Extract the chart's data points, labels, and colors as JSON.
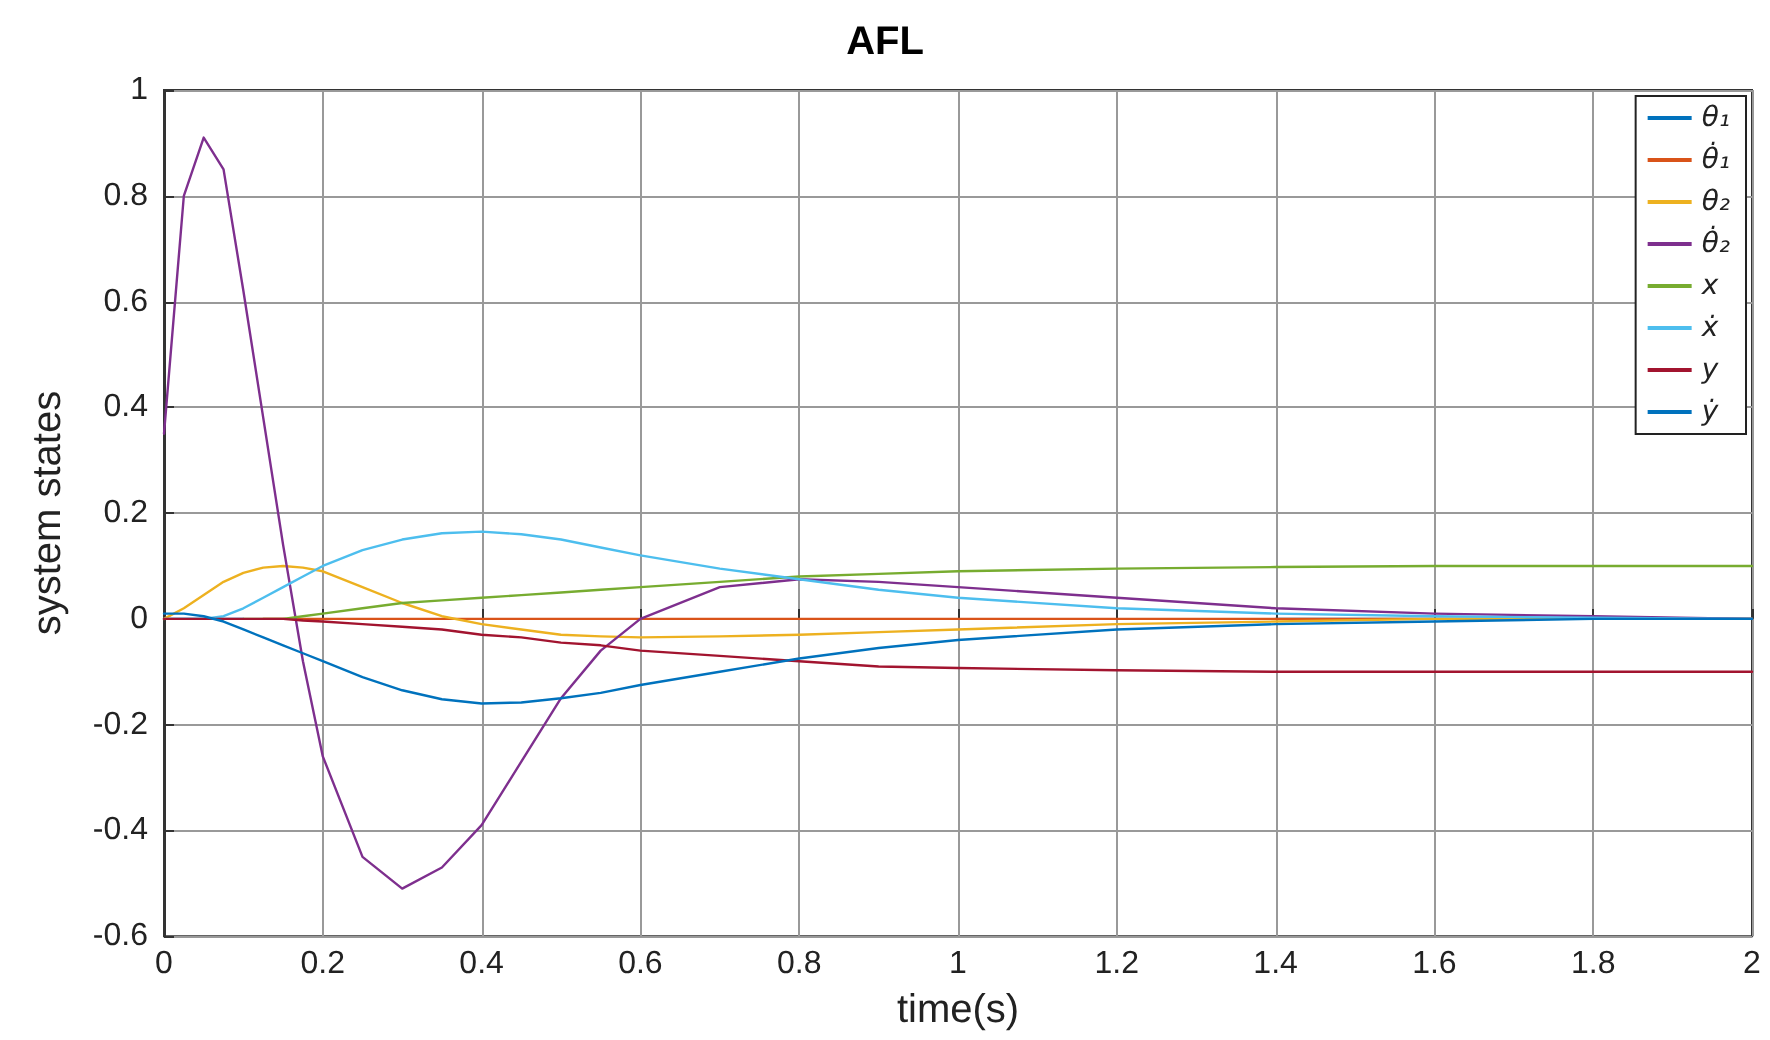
{
  "chart_data": {
    "type": "line",
    "title": "AFL",
    "xlabel": "time(s)",
    "ylabel": "system states",
    "x": [
      0,
      0.025,
      0.05,
      0.075,
      0.1,
      0.125,
      0.15,
      0.175,
      0.2,
      0.25,
      0.3,
      0.35,
      0.4,
      0.45,
      0.5,
      0.55,
      0.6,
      0.7,
      0.8,
      0.9,
      1.0,
      1.2,
      1.4,
      1.6,
      1.8,
      2.0
    ],
    "series": [
      {
        "name": "θ₁",
        "color": "#0072bd",
        "values": [
          0,
          0,
          0,
          0,
          0,
          null,
          null,
          null,
          null,
          null,
          null,
          null,
          null,
          null,
          null,
          null,
          null,
          null,
          null,
          null,
          null,
          null,
          0,
          0,
          0,
          0
        ]
      },
      {
        "name": "θ̇₁",
        "color": "#d95319",
        "values": [
          null,
          null,
          null,
          null,
          null,
          0,
          0,
          0,
          0,
          0,
          0,
          0,
          0,
          0,
          0,
          0,
          0,
          0,
          0,
          0,
          0,
          0,
          0,
          0,
          0,
          0
        ]
      },
      {
        "name": "θ₂",
        "color": "#edb120",
        "values": [
          0,
          0.02,
          0.045,
          0.07,
          0.087,
          0.097,
          0.1,
          0.097,
          0.09,
          0.06,
          0.03,
          0.005,
          -0.01,
          -0.02,
          -0.03,
          -0.033,
          -0.035,
          -0.033,
          -0.03,
          -0.025,
          -0.02,
          -0.01,
          -0.005,
          0,
          0,
          0
        ]
      },
      {
        "name": "θ̇₂",
        "color": "#7e2f8e",
        "values": [
          0.35,
          0.8,
          0.91,
          0.85,
          0.62,
          0.38,
          0.14,
          -0.08,
          -0.26,
          -0.45,
          -0.51,
          -0.47,
          -0.39,
          -0.27,
          -0.15,
          -0.06,
          0,
          0.06,
          0.075,
          0.07,
          0.06,
          0.04,
          0.02,
          0.01,
          0.005,
          0
        ]
      },
      {
        "name": "x",
        "color": "#77ac30",
        "values": [
          null,
          null,
          null,
          null,
          0,
          0,
          0,
          0.005,
          0.01,
          0.02,
          0.03,
          0.035,
          0.04,
          0.045,
          0.05,
          0.055,
          0.06,
          0.07,
          0.08,
          0.085,
          0.09,
          0.095,
          0.098,
          0.1,
          0.1,
          0.1
        ]
      },
      {
        "name": "ẋ",
        "color": "#4dbeee",
        "values": [
          0,
          0,
          0,
          0.005,
          0.02,
          0.04,
          0.06,
          0.08,
          0.1,
          0.13,
          0.15,
          0.162,
          0.165,
          0.16,
          0.15,
          0.135,
          0.12,
          0.095,
          0.075,
          0.055,
          0.04,
          0.02,
          0.01,
          0.005,
          0.002,
          0
        ]
      },
      {
        "name": "y",
        "color": "#a2142f",
        "values": [
          0,
          0,
          0,
          0,
          0,
          0,
          0,
          -0.003,
          -0.005,
          -0.01,
          -0.015,
          -0.02,
          -0.03,
          -0.035,
          -0.045,
          -0.05,
          -0.06,
          -0.07,
          -0.08,
          -0.09,
          -0.093,
          -0.097,
          -0.1,
          -0.1,
          -0.1,
          -0.1
        ]
      },
      {
        "name": "ẏ",
        "color": "#0072bd",
        "values": [
          0.01,
          0.01,
          0.005,
          -0.005,
          -0.02,
          -0.035,
          -0.05,
          -0.065,
          -0.08,
          -0.11,
          -0.135,
          -0.152,
          -0.16,
          -0.158,
          -0.15,
          -0.14,
          -0.125,
          -0.1,
          -0.075,
          -0.055,
          -0.04,
          -0.02,
          -0.01,
          -0.005,
          0,
          0
        ]
      }
    ],
    "xlim": [
      0,
      2
    ],
    "xticks": [
      0,
      0.2,
      0.4,
      0.6,
      0.8,
      1,
      1.2,
      1.4,
      1.6,
      1.8,
      2
    ],
    "ylim": [
      -0.6,
      1
    ],
    "yticks": [
      -0.6,
      -0.4,
      -0.2,
      0,
      0.2,
      0.4,
      0.6,
      0.8,
      1
    ],
    "grid": true,
    "legend": "top right",
    "marker": "none",
    "line_style": "solid"
  }
}
